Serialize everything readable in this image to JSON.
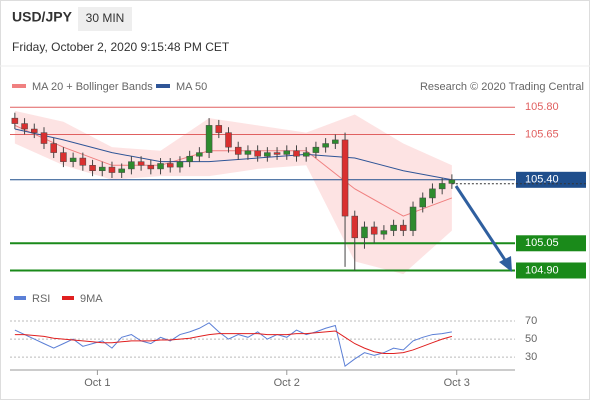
{
  "header": {
    "symbol": "USD/JPY",
    "interval": "30 MIN",
    "timestamp": "Friday, October 2, 2020 9:15:48 PM CET"
  },
  "chart_data": [
    {
      "type": "candlestick",
      "source": "Research © 2020 Trading Central",
      "xlim": [
        -0.5,
        51.5
      ],
      "ylim": [
        104.82,
        105.84
      ],
      "up_color": "#2e8b2e",
      "down_color": "#d93030",
      "open": [
        105.74,
        105.71,
        105.68,
        105.66,
        105.6,
        105.55,
        105.5,
        105.52,
        105.48,
        105.45,
        105.47,
        105.44,
        105.46,
        105.5,
        105.48,
        105.46,
        105.49,
        105.47,
        105.5,
        105.53,
        105.55,
        105.7,
        105.66,
        105.58,
        105.54,
        105.56,
        105.53,
        105.55,
        105.54,
        105.56,
        105.53,
        105.55,
        105.58,
        105.6,
        105.62,
        105.2,
        105.08,
        105.14,
        105.1,
        105.12,
        105.15,
        105.12,
        105.25,
        105.3,
        105.35,
        105.38
      ],
      "high": [
        105.77,
        105.74,
        105.71,
        105.69,
        105.63,
        105.58,
        105.55,
        105.55,
        105.51,
        105.5,
        105.5,
        105.49,
        105.53,
        105.53,
        105.51,
        105.52,
        105.52,
        105.53,
        105.56,
        105.58,
        105.74,
        105.73,
        105.69,
        105.61,
        105.59,
        105.59,
        105.58,
        105.58,
        105.59,
        105.59,
        105.58,
        105.61,
        105.63,
        105.65,
        105.66,
        105.23,
        105.17,
        105.17,
        105.15,
        105.18,
        105.18,
        105.28,
        105.33,
        105.38,
        105.41,
        105.43
      ],
      "low": [
        105.68,
        105.65,
        105.63,
        105.57,
        105.52,
        105.47,
        105.47,
        105.45,
        105.42,
        105.42,
        105.41,
        105.41,
        105.43,
        105.45,
        105.43,
        105.43,
        105.44,
        105.44,
        105.47,
        105.5,
        105.52,
        105.63,
        105.55,
        105.51,
        105.51,
        105.5,
        105.5,
        105.51,
        105.51,
        105.5,
        105.5,
        105.52,
        105.55,
        105.57,
        104.92,
        104.9,
        105.02,
        105.05,
        105.07,
        105.09,
        105.09,
        105.09,
        105.22,
        105.27,
        105.32,
        105.35
      ],
      "close": [
        105.71,
        105.68,
        105.66,
        105.6,
        105.55,
        105.5,
        105.52,
        105.48,
        105.45,
        105.47,
        105.44,
        105.46,
        105.5,
        105.48,
        105.46,
        105.49,
        105.47,
        105.5,
        105.53,
        105.55,
        105.7,
        105.66,
        105.58,
        105.54,
        105.56,
        105.53,
        105.55,
        105.54,
        105.56,
        105.53,
        105.55,
        105.58,
        105.6,
        105.62,
        105.2,
        105.08,
        105.14,
        105.1,
        105.12,
        105.15,
        105.12,
        105.25,
        105.3,
        105.35,
        105.38,
        105.4
      ],
      "overlay_x": [
        0,
        5,
        10,
        15,
        20,
        25,
        30,
        35,
        40,
        45
      ],
      "band": {
        "color": "#fddcdc",
        "upper": [
          105.78,
          105.72,
          105.58,
          105.56,
          105.74,
          105.7,
          105.66,
          105.76,
          105.6,
          105.48
        ],
        "lower": [
          105.6,
          105.48,
          105.4,
          105.42,
          105.42,
          105.46,
          105.48,
          104.95,
          104.88,
          105.12
        ]
      },
      "series": [
        {
          "name": "MA 20 + Bollinger Bands",
          "color": "#f08080",
          "values": [
            105.7,
            105.58,
            105.48,
            105.48,
            105.56,
            105.56,
            105.56,
            105.35,
            105.2,
            105.3
          ]
        },
        {
          "name": "MA 50",
          "color": "#2f5597",
          "values": [
            105.68,
            105.62,
            105.55,
            105.5,
            105.5,
            105.52,
            105.54,
            105.52,
            105.45,
            105.4
          ]
        }
      ],
      "levels": [
        {
          "value": 105.8,
          "label": "105.80"
        },
        {
          "value": 105.65,
          "label": "105.65"
        },
        {
          "value": 105.4,
          "label": "105.40"
        },
        {
          "value": 105.05,
          "label": "105.05"
        },
        {
          "value": 104.9,
          "label": "104.90"
        }
      ],
      "level_colors": [
        "#e06060",
        "#e06060",
        "#1f4e8c",
        "#1a8a1a",
        "#1a8a1a"
      ]
    },
    {
      "type": "line",
      "xlim": [
        -0.5,
        51.5
      ],
      "ylim": [
        18,
        80
      ],
      "yticks": [
        30,
        50,
        70
      ],
      "xticks": [
        {
          "value": 8.5,
          "label": "Oct 1"
        },
        {
          "value": 28,
          "label": "Oct 2"
        },
        {
          "value": 45.5,
          "label": "Oct 3"
        }
      ],
      "series": [
        {
          "name": "RSI",
          "color": "#5b7fd6",
          "values": [
            60,
            55,
            50,
            45,
            40,
            45,
            50,
            42,
            45,
            48,
            40,
            52,
            55,
            48,
            45,
            52,
            48,
            55,
            58,
            62,
            68,
            58,
            50,
            55,
            52,
            58,
            50,
            55,
            52,
            60,
            55,
            58,
            62,
            65,
            20,
            28,
            35,
            32,
            35,
            40,
            38,
            48,
            52,
            55,
            56,
            58
          ]
        },
        {
          "name": "9MA",
          "color": "#e02020",
          "values": [
            55,
            55,
            54,
            53,
            51,
            50,
            49,
            48,
            47,
            46,
            46,
            47,
            48,
            48,
            48,
            49,
            49,
            50,
            51,
            53,
            55,
            56,
            56,
            56,
            56,
            56,
            55,
            55,
            55,
            56,
            56,
            57,
            58,
            59,
            52,
            45,
            40,
            36,
            34,
            34,
            35,
            38,
            42,
            46,
            50,
            53
          ]
        }
      ]
    }
  ]
}
